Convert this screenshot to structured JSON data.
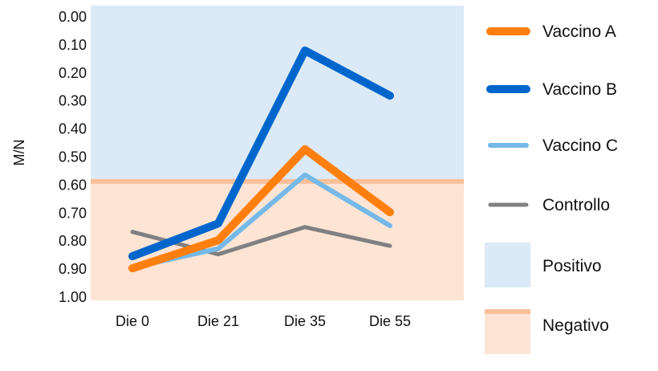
{
  "chart_data": {
    "type": "line",
    "title": "",
    "xlabel": "",
    "ylabel": "M/N",
    "ylim": [
      1.0,
      0.0
    ],
    "y_inverted": true,
    "yticks": [
      "0.00",
      "0.10",
      "0.20",
      "0.30",
      "0.40",
      "0.50",
      "0.60",
      "0.70",
      "0.80",
      "0.90",
      "1.00"
    ],
    "categories": [
      "Die 0",
      "Die 21",
      "Die 35",
      "Die 55"
    ],
    "grid": false,
    "legend_position": "right",
    "threshold": 0.59,
    "regions": [
      {
        "name": "Positivo",
        "color": "#dceaf7",
        "range": "above threshold"
      },
      {
        "name": "Negativo",
        "color": "#fde4d4",
        "range": "below threshold",
        "line_color": "#fbbf9a"
      }
    ],
    "series": [
      {
        "name": "Vaccino A",
        "color": "#ff7f0e",
        "values": [
          0.9,
          0.8,
          0.475,
          0.7
        ]
      },
      {
        "name": "Vaccino B",
        "color": "#0066cc",
        "values": [
          0.857,
          0.74,
          0.123,
          0.284
        ]
      },
      {
        "name": "Vaccino C",
        "color": "#74b9e8",
        "values": [
          0.897,
          0.83,
          0.567,
          0.748
        ]
      },
      {
        "name": "Controllo",
        "color": "#808080",
        "values": [
          0.77,
          0.85,
          0.753,
          0.82
        ]
      }
    ]
  }
}
